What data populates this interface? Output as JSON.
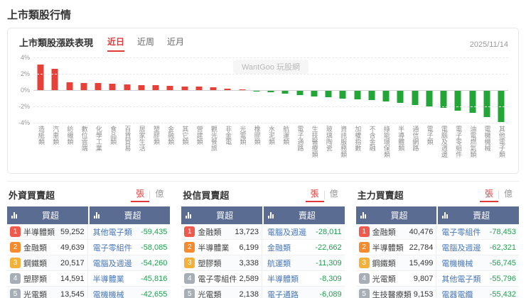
{
  "page": {
    "title": "上市類股行情"
  },
  "chart_panel": {
    "title": "上市類股漲跌表現",
    "tabs": [
      {
        "label": "近日",
        "active": true
      },
      {
        "label": "近周",
        "active": false
      },
      {
        "label": "近月",
        "active": false
      }
    ],
    "date": "2025/11/14",
    "watermark": "WantGoo 玩股網"
  },
  "chart_data": {
    "type": "bar",
    "title": "上市類股漲跌表現",
    "unit": "%",
    "ylim": [
      -4,
      4
    ],
    "yticks": [
      4,
      2,
      0,
      -2,
      -4
    ],
    "grid": true,
    "legend": false,
    "up_color": "#e5403a",
    "down_color": "#23a637",
    "categories": [
      "造紙類",
      "汽車類",
      "紡織類",
      "數位雲端",
      "化學工業",
      "食品類",
      "百貨貿易",
      "居家生活",
      "塑膠類",
      "金融類",
      "其它類",
      "營建類",
      "觀光餐旅",
      "非金電",
      "光電類",
      "橡膠類",
      "水泥類",
      "航運類",
      "電子通路",
      "生技醫療類",
      "玻璃陶瓷",
      "資訊服務類",
      "加權指數",
      "不含金融",
      "綠能環保類",
      "半導體類",
      "通信網路",
      "電子類",
      "電腦及週邊",
      "電子零組件",
      "油電燃氣類",
      "電機機械",
      "其他電子類"
    ],
    "values": [
      3.15,
      2.6,
      1.0,
      0.9,
      0.85,
      0.8,
      0.7,
      0.65,
      0.6,
      0.5,
      0.45,
      0.4,
      0.35,
      0.2,
      0.1,
      -0.15,
      -0.3,
      -0.45,
      -0.6,
      -0.75,
      -0.85,
      -1.0,
      -1.1,
      -1.2,
      -1.4,
      -1.6,
      -1.8,
      -2.0,
      -2.2,
      -2.5,
      -2.8,
      -3.3,
      -3.9
    ]
  },
  "badge_colors": [
    "#ef5a4c",
    "#f58b2e",
    "#f3b13a",
    "#a7aeb6",
    "#a7aeb6"
  ],
  "panels": [
    {
      "title": "外資買賣超",
      "units": [
        {
          "label": "張",
          "active": true
        },
        {
          "label": "億",
          "active": false
        }
      ],
      "columns": {
        "buy": "買超",
        "sell": "賣超"
      },
      "rows": [
        {
          "rank": 1,
          "buy_name": "半導體類",
          "buy_value": "59,252",
          "sell_name": "其他電子類",
          "sell_value": "-59,435"
        },
        {
          "rank": 2,
          "buy_name": "金融類",
          "buy_value": "49,639",
          "sell_name": "電子零組件",
          "sell_value": "-58,085"
        },
        {
          "rank": 3,
          "buy_name": "鋼鐵類",
          "buy_value": "20,517",
          "sell_name": "電腦及週邊",
          "sell_value": "-54,260"
        },
        {
          "rank": 4,
          "buy_name": "塑膠類",
          "buy_value": "14,591",
          "sell_name": "半導體業",
          "sell_value": "-45,816"
        },
        {
          "rank": 5,
          "buy_name": "光電類",
          "buy_value": "13,545",
          "sell_name": "電機機械",
          "sell_value": "-42,655"
        }
      ]
    },
    {
      "title": "投信買賣超",
      "units": [
        {
          "label": "張",
          "active": true
        },
        {
          "label": "億",
          "active": false
        }
      ],
      "columns": {
        "buy": "買超",
        "sell": "賣超"
      },
      "rows": [
        {
          "rank": 1,
          "buy_name": "金融類",
          "buy_value": "13,723",
          "sell_name": "電腦及週邊",
          "sell_value": "-28,011"
        },
        {
          "rank": 2,
          "buy_name": "半導體業",
          "buy_value": "6,199",
          "sell_name": "金融類",
          "sell_value": "-22,662"
        },
        {
          "rank": 3,
          "buy_name": "塑膠類",
          "buy_value": "3,338",
          "sell_name": "航運類",
          "sell_value": "-11,309"
        },
        {
          "rank": 4,
          "buy_name": "電子零組件",
          "buy_value": "2,589",
          "sell_name": "半導體類",
          "sell_value": "-8,309"
        },
        {
          "rank": 5,
          "buy_name": "光電類",
          "buy_value": "2,138",
          "sell_name": "電子通路",
          "sell_value": "-6,089"
        }
      ]
    },
    {
      "title": "主力買賣超",
      "units": [
        {
          "label": "張",
          "active": true
        },
        {
          "label": "億",
          "active": false
        }
      ],
      "columns": {
        "buy": "買超",
        "sell": "賣超"
      },
      "rows": [
        {
          "rank": 1,
          "buy_name": "金融類",
          "buy_value": "40,476",
          "sell_name": "電子零組件",
          "sell_value": "-78,453"
        },
        {
          "rank": 2,
          "buy_name": "半導體類",
          "buy_value": "22,784",
          "sell_name": "電腦及週邊",
          "sell_value": "-62,321"
        },
        {
          "rank": 3,
          "buy_name": "鋼鐵類",
          "buy_value": "15,499",
          "sell_name": "電機機械",
          "sell_value": "-56,745"
        },
        {
          "rank": 4,
          "buy_name": "光電類",
          "buy_value": "9,807",
          "sell_name": "其他電子類",
          "sell_value": "-55,796"
        },
        {
          "rank": 5,
          "buy_name": "生技醫療類",
          "buy_value": "9,153",
          "sell_name": "電器電纜",
          "sell_value": "-55,432"
        }
      ]
    }
  ]
}
